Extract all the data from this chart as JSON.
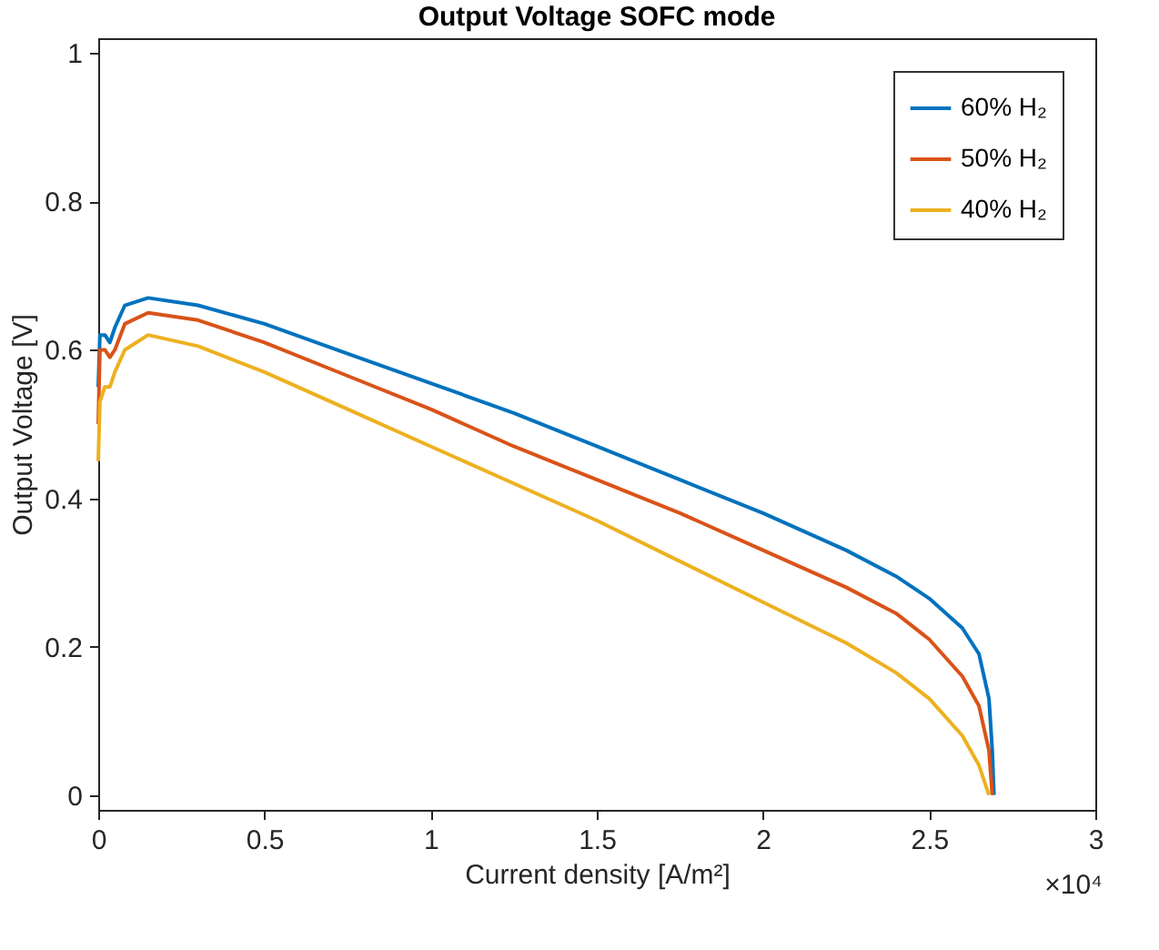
{
  "chart_data": {
    "type": "line",
    "title": "Output Voltage SOFC mode",
    "xlabel": "Current density [A/m²]",
    "ylabel": "Output Voltage [V]",
    "annotations": [
      "×10⁴"
    ],
    "xlim": [
      0,
      3
    ],
    "xticks": [
      0,
      0.5,
      1,
      1.5,
      2,
      2.5,
      3
    ],
    "ylim": [
      -0.02,
      1.02
    ],
    "yticks": [
      0,
      0.2,
      0.4,
      0.6,
      0.8,
      1
    ],
    "grid": false,
    "legend": "top right",
    "line_style": "solid",
    "marker": "none",
    "series": [
      {
        "name": "60% H₂",
        "color": "#0072bd",
        "x": [
          0,
          0.005,
          0.02,
          0.035,
          0.05,
          0.08,
          0.15,
          0.3,
          0.5,
          0.75,
          1,
          1.25,
          1.5,
          1.75,
          2,
          2.25,
          2.4,
          2.5,
          2.6,
          2.65,
          2.68,
          2.69,
          2.695
        ],
        "values": [
          0.55,
          0.62,
          0.62,
          0.61,
          0.63,
          0.66,
          0.67,
          0.66,
          0.635,
          0.595,
          0.555,
          0.515,
          0.47,
          0.425,
          0.38,
          0.33,
          0.295,
          0.265,
          0.225,
          0.19,
          0.13,
          0.06,
          0
        ]
      },
      {
        "name": "50% H₂",
        "color": "#d95319",
        "x": [
          0,
          0.005,
          0.02,
          0.035,
          0.05,
          0.08,
          0.15,
          0.3,
          0.5,
          0.75,
          1,
          1.25,
          1.5,
          1.75,
          2,
          2.25,
          2.4,
          2.5,
          2.6,
          2.65,
          2.68,
          2.69
        ],
        "values": [
          0.5,
          0.6,
          0.6,
          0.59,
          0.6,
          0.635,
          0.65,
          0.64,
          0.61,
          0.565,
          0.52,
          0.47,
          0.425,
          0.38,
          0.33,
          0.28,
          0.245,
          0.21,
          0.16,
          0.12,
          0.06,
          0
        ]
      },
      {
        "name": "40% H₂",
        "color": "#edb120",
        "x": [
          0,
          0.005,
          0.02,
          0.035,
          0.05,
          0.08,
          0.15,
          0.3,
          0.5,
          0.75,
          1,
          1.25,
          1.5,
          1.75,
          2,
          2.25,
          2.4,
          2.5,
          2.6,
          2.65,
          2.68
        ],
        "values": [
          0.45,
          0.53,
          0.55,
          0.55,
          0.57,
          0.6,
          0.62,
          0.605,
          0.57,
          0.52,
          0.47,
          0.42,
          0.37,
          0.315,
          0.26,
          0.205,
          0.165,
          0.13,
          0.08,
          0.04,
          0
        ]
      }
    ]
  }
}
